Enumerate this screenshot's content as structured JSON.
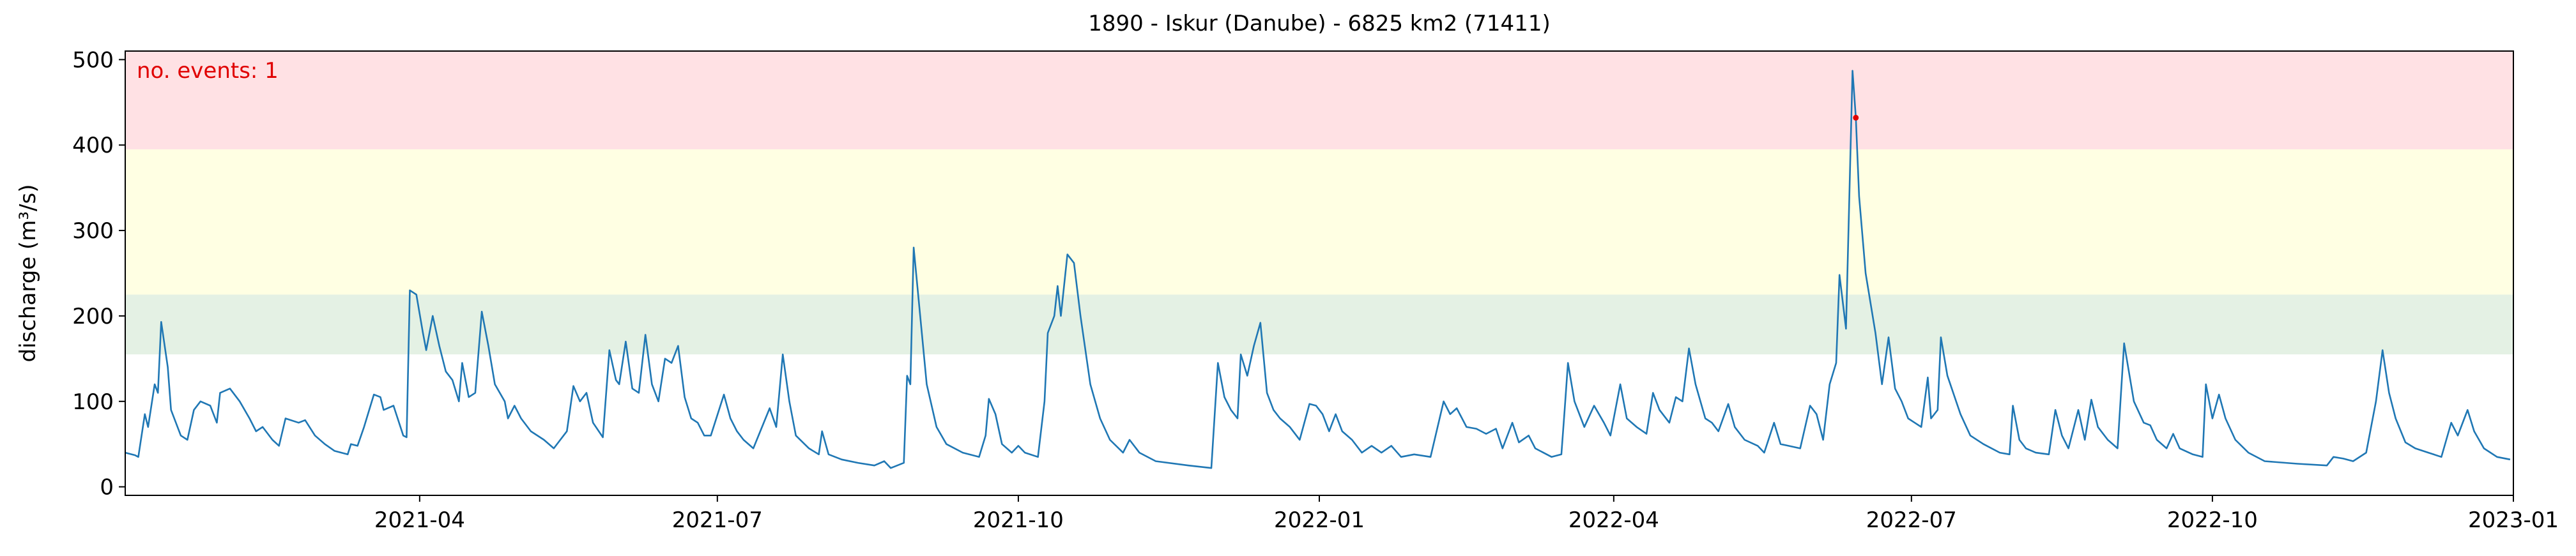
{
  "chart_data": {
    "type": "line",
    "title": "1890 - Iskur (Danube) - 6825 km2 (71411)",
    "y_label": "discharge (m³/s)",
    "annotation": {
      "text": "no. events: 1",
      "color": "#e00000"
    },
    "xlim": [
      0,
      730
    ],
    "xticks": [
      {
        "value": 90,
        "label": "2021-04"
      },
      {
        "value": 181,
        "label": "2021-07"
      },
      {
        "value": 273,
        "label": "2021-10"
      },
      {
        "value": 365,
        "label": "2022-01"
      },
      {
        "value": 455,
        "label": "2022-04"
      },
      {
        "value": 546,
        "label": "2022-07"
      },
      {
        "value": 638,
        "label": "2022-10"
      },
      {
        "value": 730,
        "label": "2023-01"
      }
    ],
    "ylim": [
      -10,
      510
    ],
    "yticks": [
      0,
      100,
      200,
      300,
      400,
      500
    ],
    "bands": [
      {
        "from": 155,
        "to": 225,
        "color": "#e4f1e4"
      },
      {
        "from": 225,
        "to": 395,
        "color": "#ffffe3"
      },
      {
        "from": 395,
        "to": 510,
        "color": "#ffe1e4"
      }
    ],
    "color": "#1f77b4",
    "x": [
      0,
      3,
      4,
      6,
      7,
      9,
      10,
      11,
      13,
      14,
      17,
      19,
      21,
      23,
      26,
      28,
      29,
      32,
      35,
      38,
      40,
      42,
      45,
      47,
      49,
      53,
      55,
      58,
      61,
      64,
      68,
      69,
      71,
      73,
      76,
      78,
      79,
      82,
      85,
      86,
      87,
      89,
      91,
      92,
      94,
      96,
      98,
      100,
      102,
      103,
      105,
      107,
      109,
      111,
      113,
      116,
      117,
      119,
      121,
      124,
      128,
      131,
      133,
      135,
      137,
      139,
      141,
      143,
      146,
      148,
      150,
      151,
      153,
      155,
      157,
      159,
      161,
      163,
      165,
      167,
      169,
      171,
      173,
      175,
      177,
      179,
      183,
      185,
      187,
      189,
      192,
      197,
      199,
      201,
      203,
      205,
      209,
      212,
      213,
      215,
      219,
      224,
      229,
      232,
      234,
      238,
      239,
      240,
      241,
      243,
      245,
      248,
      251,
      256,
      261,
      263,
      264,
      266,
      268,
      271,
      273,
      275,
      279,
      281,
      282,
      284,
      285,
      286,
      288,
      290,
      292,
      295,
      298,
      301,
      305,
      307,
      310,
      315,
      325,
      332,
      334,
      336,
      338,
      340,
      341,
      343,
      345,
      347,
      349,
      351,
      353,
      356,
      359,
      362,
      364,
      366,
      368,
      370,
      372,
      375,
      378,
      381,
      384,
      387,
      390,
      394,
      399,
      403,
      405,
      407,
      410,
      413,
      416,
      419,
      421,
      424,
      426,
      429,
      431,
      436,
      439,
      440,
      441,
      443,
      446,
      449,
      452,
      454,
      457,
      459,
      462,
      465,
      467,
      469,
      472,
      474,
      476,
      478,
      480,
      483,
      485,
      487,
      490,
      492,
      495,
      499,
      501,
      504,
      506,
      512,
      515,
      517,
      519,
      521,
      523,
      524,
      526,
      528,
      529,
      530,
      532,
      535,
      537,
      539,
      541,
      543,
      545,
      547,
      549,
      551,
      552,
      554,
      555,
      557,
      561,
      564,
      568,
      573,
      576,
      577,
      579,
      581,
      584,
      588,
      590,
      592,
      594,
      597,
      599,
      601,
      603,
      606,
      609,
      611,
      614,
      617,
      619,
      621,
      624,
      626,
      628,
      632,
      635,
      636,
      638,
      640,
      642,
      645,
      649,
      654,
      664,
      673,
      675,
      678,
      681,
      685,
      688,
      690,
      692,
      694,
      697,
      700,
      704,
      708,
      711,
      713,
      715,
      716,
      718,
      721,
      725,
      729
    ],
    "values": [
      40,
      37,
      35,
      85,
      70,
      120,
      110,
      193,
      140,
      90,
      60,
      55,
      90,
      100,
      95,
      75,
      110,
      115,
      100,
      80,
      65,
      70,
      55,
      48,
      80,
      75,
      78,
      60,
      50,
      42,
      38,
      50,
      48,
      70,
      108,
      105,
      90,
      95,
      60,
      58,
      230,
      225,
      180,
      160,
      200,
      165,
      135,
      125,
      100,
      145,
      105,
      110,
      205,
      165,
      120,
      100,
      80,
      95,
      80,
      65,
      55,
      45,
      55,
      65,
      118,
      100,
      110,
      75,
      58,
      160,
      125,
      120,
      170,
      115,
      110,
      178,
      120,
      100,
      150,
      145,
      165,
      105,
      80,
      75,
      60,
      60,
      108,
      80,
      65,
      55,
      45,
      92,
      70,
      155,
      100,
      60,
      45,
      38,
      65,
      38,
      32,
      28,
      25,
      30,
      22,
      28,
      130,
      120,
      280,
      200,
      120,
      70,
      50,
      40,
      35,
      60,
      103,
      85,
      50,
      40,
      48,
      40,
      35,
      100,
      180,
      200,
      235,
      200,
      272,
      262,
      200,
      120,
      80,
      55,
      40,
      55,
      40,
      30,
      25,
      22,
      145,
      105,
      90,
      80,
      155,
      130,
      165,
      192,
      110,
      90,
      80,
      70,
      55,
      97,
      95,
      85,
      65,
      85,
      65,
      55,
      40,
      48,
      40,
      48,
      35,
      38,
      35,
      100,
      85,
      92,
      70,
      68,
      62,
      68,
      45,
      75,
      52,
      60,
      45,
      35,
      38,
      90,
      145,
      100,
      70,
      95,
      75,
      60,
      120,
      80,
      70,
      62,
      110,
      90,
      75,
      105,
      100,
      162,
      120,
      80,
      75,
      65,
      97,
      70,
      55,
      48,
      40,
      75,
      50,
      45,
      95,
      85,
      55,
      120,
      145,
      248,
      185,
      487,
      432,
      340,
      250,
      180,
      120,
      175,
      115,
      100,
      80,
      75,
      70,
      128,
      80,
      90,
      175,
      130,
      85,
      60,
      50,
      40,
      38,
      95,
      55,
      45,
      40,
      38,
      90,
      60,
      45,
      90,
      55,
      102,
      70,
      55,
      45,
      168,
      100,
      75,
      72,
      55,
      45,
      62,
      45,
      38,
      35,
      120,
      80,
      108,
      80,
      55,
      40,
      30,
      27,
      25,
      35,
      33,
      30,
      40,
      100,
      160,
      110,
      80,
      52,
      45,
      40,
      35,
      75,
      60,
      80,
      90,
      65,
      45,
      35,
      32
    ],
    "events": {
      "x": [
        529
      ],
      "values": [
        432
      ],
      "color": "#e00000"
    }
  }
}
